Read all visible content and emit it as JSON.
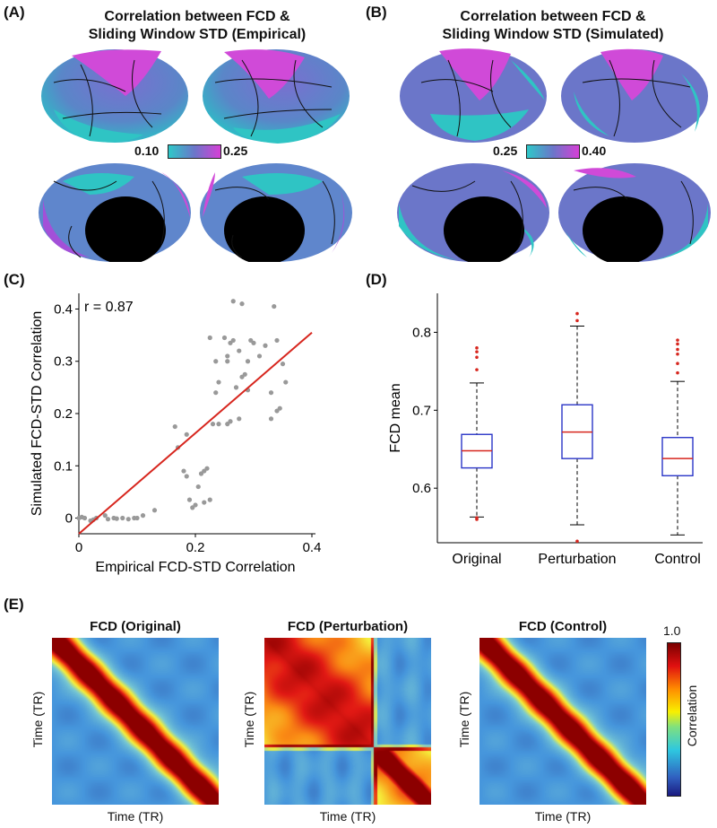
{
  "panels": {
    "a": {
      "letter": "(A)",
      "title_line1": "Correlation between FCD &",
      "title_line2": "Sliding Window STD (Empirical)",
      "cb_min": "0.10",
      "cb_max": "0.25"
    },
    "b": {
      "letter": "(B)",
      "title_line1": "Correlation between FCD &",
      "title_line2": "Sliding Window STD (Simulated)",
      "cb_min": "0.25",
      "cb_max": "0.40"
    },
    "c": {
      "letter": "(C)"
    },
    "d": {
      "letter": "(D)"
    },
    "e": {
      "letter": "(E)"
    }
  },
  "colors": {
    "brain_low": "#2ec8c8",
    "brain_mid": "#6b76c9",
    "brain_high": "#d63fd6",
    "fit_line": "#d7261e",
    "scatter_point": "#999999",
    "box": "#2b36c7",
    "median": "#d7261e",
    "outlier": "#d7261e"
  },
  "chart_data": [
    {
      "type": "scatter",
      "annotation": "r = 0.87",
      "xlabel": "Empirical FCD-STD Correlation",
      "ylabel": "Simulated FCD-STD Correlation",
      "xlim": [
        0,
        0.4
      ],
      "ylim": [
        -0.03,
        0.43
      ],
      "xticks": [
        0,
        0.2,
        0.4
      ],
      "yticks": [
        0,
        0.1,
        0.2,
        0.3,
        0.4
      ],
      "points": [
        [
          0.0,
          0.0
        ],
        [
          0.005,
          0.002
        ],
        [
          0.01,
          0.0
        ],
        [
          0.02,
          -0.005
        ],
        [
          0.025,
          -0.003
        ],
        [
          0.03,
          0.0
        ],
        [
          0.045,
          0.005
        ],
        [
          0.05,
          -0.002
        ],
        [
          0.06,
          0.0
        ],
        [
          0.065,
          -0.001
        ],
        [
          0.075,
          0.0
        ],
        [
          0.085,
          -0.002
        ],
        [
          0.095,
          0.0
        ],
        [
          0.1,
          0.0
        ],
        [
          0.11,
          0.005
        ],
        [
          0.13,
          0.015
        ],
        [
          0.165,
          0.175
        ],
        [
          0.17,
          0.135
        ],
        [
          0.185,
          0.16
        ],
        [
          0.18,
          0.09
        ],
        [
          0.185,
          0.08
        ],
        [
          0.19,
          0.035
        ],
        [
          0.195,
          0.02
        ],
        [
          0.2,
          0.025
        ],
        [
          0.205,
          0.06
        ],
        [
          0.21,
          0.085
        ],
        [
          0.215,
          0.09
        ],
        [
          0.215,
          0.03
        ],
        [
          0.22,
          0.095
        ],
        [
          0.225,
          0.035
        ],
        [
          0.23,
          0.18
        ],
        [
          0.235,
          0.24
        ],
        [
          0.24,
          0.26
        ],
        [
          0.25,
          0.345
        ],
        [
          0.255,
          0.3
        ],
        [
          0.255,
          0.31
        ],
        [
          0.26,
          0.335
        ],
        [
          0.265,
          0.34
        ],
        [
          0.27,
          0.25
        ],
        [
          0.275,
          0.32
        ],
        [
          0.28,
          0.27
        ],
        [
          0.285,
          0.275
        ],
        [
          0.29,
          0.3
        ],
        [
          0.29,
          0.245
        ],
        [
          0.295,
          0.34
        ],
        [
          0.3,
          0.335
        ],
        [
          0.31,
          0.31
        ],
        [
          0.32,
          0.33
        ],
        [
          0.33,
          0.24
        ],
        [
          0.335,
          0.405
        ],
        [
          0.34,
          0.34
        ],
        [
          0.345,
          0.21
        ],
        [
          0.35,
          0.295
        ],
        [
          0.355,
          0.26
        ],
        [
          0.265,
          0.415
        ],
        [
          0.28,
          0.41
        ],
        [
          0.225,
          0.345
        ],
        [
          0.24,
          0.18
        ],
        [
          0.255,
          0.18
        ],
        [
          0.26,
          0.185
        ],
        [
          0.275,
          0.19
        ],
        [
          0.33,
          0.19
        ],
        [
          0.34,
          0.205
        ],
        [
          0.235,
          0.3
        ]
      ],
      "fit": {
        "x": [
          0,
          0.4
        ],
        "y": [
          -0.03,
          0.355
        ]
      }
    },
    {
      "type": "box",
      "ylabel": "FCD mean",
      "categories": [
        "Original",
        "Perturbation",
        "Control"
      ],
      "ylim": [
        0.53,
        0.85
      ],
      "yticks": [
        0.6,
        0.7,
        0.8
      ],
      "boxes": [
        {
          "name": "Original",
          "whisker_low": 0.563,
          "q1": 0.626,
          "median": 0.648,
          "q3": 0.669,
          "whisker_high": 0.735,
          "outliers": [
            0.752,
            0.768,
            0.775,
            0.78,
            0.562,
            0.56
          ]
        },
        {
          "name": "Perturbation",
          "whisker_low": 0.553,
          "q1": 0.638,
          "median": 0.672,
          "q3": 0.707,
          "whisker_high": 0.808,
          "outliers": [
            0.815,
            0.824,
            0.532
          ]
        },
        {
          "name": "Control",
          "whisker_low": 0.54,
          "q1": 0.616,
          "median": 0.638,
          "q3": 0.665,
          "whisker_high": 0.737,
          "outliers": [
            0.748,
            0.76,
            0.772,
            0.778,
            0.785,
            0.79
          ]
        }
      ]
    },
    {
      "type": "heatmap",
      "titles": [
        "FCD (Original)",
        "FCD (Perturbation)",
        "FCD (Control)"
      ],
      "xlabel": "Time (TR)",
      "ylabel": "Time (TR)",
      "colorbar": {
        "label": "Correlation",
        "max_label": "1.0"
      }
    }
  ]
}
